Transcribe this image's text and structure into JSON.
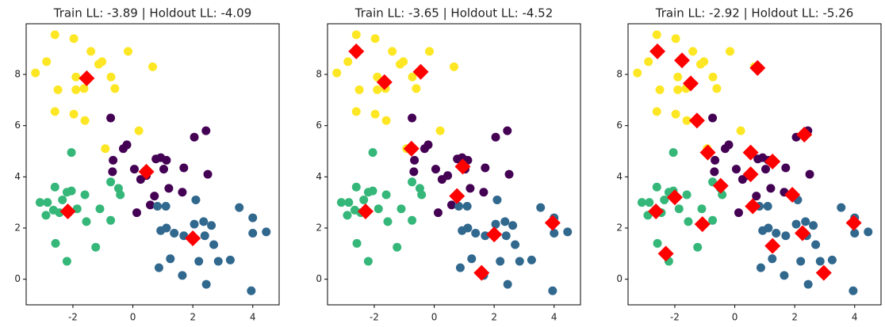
{
  "chart_data": [
    {
      "type": "scatter",
      "title": "Train LL: -3.89 | Holdout LL: -4.09",
      "xlim": [
        -3.56,
        4.88
      ],
      "ylim": [
        -1.0,
        9.98
      ],
      "xticks": [
        -2,
        0,
        2,
        4
      ],
      "yticks": [
        0,
        2,
        4,
        6,
        8
      ],
      "series": [
        {
          "color": "#fde725",
          "marker": "circle",
          "x": [
            -3.25,
            -2.88,
            -2.6,
            -1.97,
            -2.5,
            -1.9,
            -1.9,
            -2.6,
            -1.97,
            -1.6,
            -1.4,
            -1.14,
            -1.03,
            -0.73,
            -0.6,
            -0.16,
            0.66,
            0.2,
            -0.92,
            -1.63
          ],
          "values": [
            8.06,
            8.5,
            9.55,
            9.4,
            7.4,
            7.9,
            7.4,
            6.55,
            6.45,
            6.2,
            8.9,
            8.4,
            8.5,
            7.9,
            7.45,
            8.9,
            8.3,
            5.8,
            5.1,
            7.45
          ]
        },
        {
          "color": "#440154",
          "marker": "circle",
          "x": [
            -0.74,
            -0.32,
            -0.2,
            -0.66,
            -0.68,
            0.05,
            0.26,
            0.45,
            0.77,
            0.93,
            1.12,
            1.03,
            1.7,
            2.05,
            2.44,
            2.5,
            1.2,
            1.65,
            0.72,
            0.13,
            0.58
          ],
          "values": [
            6.3,
            5.1,
            5.25,
            4.65,
            4.2,
            4.3,
            3.9,
            4.05,
            4.7,
            4.75,
            4.65,
            4.3,
            4.35,
            5.55,
            5.8,
            4.1,
            3.55,
            3.4,
            3.25,
            2.6,
            2.9
          ]
        },
        {
          "color": "#31688e",
          "marker": "circle",
          "x": [
            0.82,
            1.1,
            0.93,
            1.12,
            1.38,
            1.7,
            2.05,
            2.36,
            2.62,
            2.4,
            2.7,
            2.2,
            2.85,
            3.25,
            3.55,
            4.0,
            4.0,
            4.45,
            3.95,
            2.45,
            1.65,
            1.25,
            0.87,
            2.1
          ],
          "values": [
            2.85,
            2.85,
            1.9,
            2.0,
            1.8,
            1.7,
            2.15,
            2.25,
            2.1,
            1.7,
            1.35,
            0.7,
            0.7,
            0.75,
            2.8,
            2.4,
            1.8,
            1.85,
            -0.45,
            -0.2,
            0.15,
            0.8,
            0.45,
            3.1
          ]
        },
        {
          "color": "#35b779",
          "marker": "circle",
          "x": [
            -3.1,
            -2.85,
            -2.9,
            -2.65,
            -2.6,
            -2.35,
            -2.2,
            -2.05,
            -2.05,
            -1.6,
            -1.55,
            -1.1,
            -0.74,
            -0.48,
            -0.42,
            -0.74,
            -1.24,
            -2.58,
            -2.2,
            -2.45,
            -1.86
          ],
          "values": [
            3.0,
            3.0,
            2.5,
            2.7,
            3.6,
            3.1,
            3.4,
            3.45,
            4.95,
            3.3,
            2.25,
            2.75,
            3.8,
            3.55,
            3.3,
            2.3,
            1.25,
            1.4,
            0.7,
            2.6,
            2.75
          ]
        },
        {
          "color": "#ff0000",
          "marker": "diamond",
          "x": [
            -2.17,
            -1.54,
            0.45,
            2.0
          ],
          "values": [
            2.65,
            7.85,
            4.2,
            1.6
          ]
        }
      ]
    },
    {
      "type": "scatter",
      "title": "Train LL: -3.65 | Holdout LL: -4.52",
      "xlim": [
        -3.56,
        4.88
      ],
      "ylim": [
        -1.0,
        9.98
      ],
      "xticks": [
        -2,
        0,
        2,
        4
      ],
      "yticks": [
        0,
        2,
        4,
        6,
        8
      ],
      "series": [
        {
          "color": "#fde725",
          "marker": "circle",
          "x": [
            -3.25,
            -2.88,
            -2.6,
            -1.97,
            -2.5,
            -1.9,
            -1.9,
            -2.6,
            -1.97,
            -1.6,
            -1.4,
            -1.14,
            -1.03,
            -0.73,
            -0.6,
            -0.16,
            0.66,
            0.2,
            -0.92,
            -1.63
          ],
          "values": [
            8.06,
            8.5,
            9.55,
            9.4,
            7.4,
            7.9,
            7.4,
            6.55,
            6.45,
            6.2,
            8.9,
            8.4,
            8.5,
            7.9,
            7.45,
            8.9,
            8.3,
            5.8,
            5.1,
            7.45
          ]
        },
        {
          "color": "#440154",
          "marker": "circle",
          "x": [
            -0.74,
            -0.32,
            -0.2,
            -0.66,
            -0.68,
            0.05,
            0.26,
            0.45,
            0.77,
            0.93,
            1.12,
            1.03,
            1.7,
            2.05,
            2.44,
            2.5,
            1.2,
            1.65,
            0.72,
            0.13,
            0.58
          ],
          "values": [
            6.3,
            5.1,
            5.25,
            4.65,
            4.2,
            4.3,
            3.9,
            4.05,
            4.7,
            4.75,
            4.65,
            4.3,
            4.35,
            5.55,
            5.8,
            4.1,
            3.55,
            3.4,
            3.25,
            2.6,
            2.9
          ]
        },
        {
          "color": "#31688e",
          "marker": "circle",
          "x": [
            0.82,
            1.1,
            0.93,
            1.12,
            1.38,
            1.7,
            2.05,
            2.36,
            2.62,
            2.4,
            2.7,
            2.2,
            2.85,
            3.25,
            3.55,
            4.0,
            4.0,
            4.45,
            3.95,
            2.45,
            1.65,
            1.25,
            0.87,
            2.1
          ],
          "values": [
            2.85,
            2.85,
            1.9,
            2.0,
            1.8,
            1.7,
            2.15,
            2.25,
            2.1,
            1.7,
            1.35,
            0.7,
            0.7,
            0.75,
            2.8,
            2.4,
            1.8,
            1.85,
            -0.45,
            -0.2,
            0.15,
            0.8,
            0.45,
            3.1
          ]
        },
        {
          "color": "#35b779",
          "marker": "circle",
          "x": [
            -3.1,
            -2.85,
            -2.9,
            -2.65,
            -2.6,
            -2.35,
            -2.2,
            -2.05,
            -2.05,
            -1.6,
            -1.55,
            -1.1,
            -0.74,
            -0.48,
            -0.42,
            -0.74,
            -1.24,
            -2.58,
            -2.2,
            -2.45,
            -1.86
          ],
          "values": [
            3.0,
            3.0,
            2.5,
            2.7,
            3.6,
            3.1,
            3.4,
            3.45,
            4.95,
            3.3,
            2.25,
            2.75,
            3.8,
            3.55,
            3.3,
            2.3,
            1.25,
            1.4,
            0.7,
            2.6,
            2.75
          ]
        },
        {
          "color": "#ff0000",
          "marker": "diamond",
          "x": [
            -2.6,
            -1.66,
            -0.45,
            -0.76,
            0.95,
            0.76,
            2.0,
            1.58,
            3.95,
            -2.29
          ],
          "values": [
            8.9,
            7.7,
            8.1,
            5.1,
            4.4,
            3.25,
            1.75,
            0.25,
            2.2,
            2.65
          ]
        }
      ]
    },
    {
      "type": "scatter",
      "title": "Train LL: -2.92 | Holdout LL: -5.26",
      "xlim": [
        -3.56,
        4.88
      ],
      "ylim": [
        -1.0,
        9.98
      ],
      "xticks": [
        -2,
        0,
        2,
        4
      ],
      "yticks": [
        0,
        2,
        4,
        6,
        8
      ],
      "series": [
        {
          "color": "#fde725",
          "marker": "circle",
          "x": [
            -3.25,
            -2.88,
            -2.6,
            -1.97,
            -2.5,
            -1.9,
            -1.9,
            -2.6,
            -1.97,
            -1.6,
            -1.4,
            -1.14,
            -1.03,
            -0.73,
            -0.6,
            -0.16,
            0.66,
            0.2,
            -0.92,
            -1.63
          ],
          "values": [
            8.06,
            8.5,
            9.55,
            9.4,
            7.4,
            7.9,
            7.4,
            6.55,
            6.45,
            6.2,
            8.9,
            8.4,
            8.5,
            7.9,
            7.45,
            8.9,
            8.3,
            5.8,
            5.1,
            7.45
          ]
        },
        {
          "color": "#440154",
          "marker": "circle",
          "x": [
            -0.74,
            -0.32,
            -0.2,
            -0.66,
            -0.68,
            0.05,
            0.26,
            0.45,
            0.77,
            0.93,
            1.12,
            1.03,
            1.7,
            2.05,
            2.44,
            2.5,
            1.2,
            1.65,
            0.72,
            0.13,
            0.58
          ],
          "values": [
            6.3,
            5.1,
            5.25,
            4.65,
            4.2,
            4.3,
            3.9,
            4.05,
            4.7,
            4.75,
            4.65,
            4.3,
            4.35,
            5.55,
            5.8,
            4.1,
            3.55,
            3.4,
            3.25,
            2.6,
            2.9
          ]
        },
        {
          "color": "#31688e",
          "marker": "circle",
          "x": [
            0.82,
            1.1,
            0.93,
            1.12,
            1.38,
            1.7,
            2.05,
            2.36,
            2.62,
            2.4,
            2.7,
            2.2,
            2.85,
            3.25,
            3.55,
            4.0,
            4.0,
            4.45,
            3.95,
            2.45,
            1.65,
            1.25,
            0.87,
            2.1
          ],
          "values": [
            2.85,
            2.85,
            1.9,
            2.0,
            1.8,
            1.7,
            2.15,
            2.25,
            2.1,
            1.7,
            1.35,
            0.7,
            0.7,
            0.75,
            2.8,
            2.4,
            1.8,
            1.85,
            -0.45,
            -0.2,
            0.15,
            0.8,
            0.45,
            3.1
          ]
        },
        {
          "color": "#35b779",
          "marker": "circle",
          "x": [
            -3.1,
            -2.85,
            -2.9,
            -2.65,
            -2.6,
            -2.35,
            -2.2,
            -2.05,
            -2.05,
            -1.6,
            -1.55,
            -1.1,
            -0.74,
            -0.48,
            -0.42,
            -0.74,
            -1.24,
            -2.58,
            -2.2,
            -2.45,
            -1.86
          ],
          "values": [
            3.0,
            3.0,
            2.5,
            2.7,
            3.6,
            3.1,
            3.4,
            3.45,
            4.95,
            3.3,
            2.25,
            2.75,
            3.8,
            3.55,
            3.3,
            2.3,
            1.25,
            1.4,
            0.7,
            2.6,
            2.75
          ]
        },
        {
          "color": "#ff0000",
          "marker": "diamond",
          "x": [
            -2.58,
            -1.76,
            -1.47,
            -1.26,
            -0.9,
            -0.47,
            0.53,
            0.76,
            0.6,
            1.26,
            0.53,
            1.92,
            2.32,
            2.26,
            1.26,
            2.97,
            3.97,
            -1.08,
            -2.0,
            -2.63,
            -2.3
          ],
          "values": [
            8.9,
            8.55,
            7.65,
            6.2,
            4.95,
            3.65,
            4.95,
            8.25,
            2.85,
            4.6,
            4.1,
            3.3,
            5.65,
            1.8,
            1.3,
            0.25,
            2.2,
            2.15,
            3.2,
            2.65,
            1.0
          ]
        }
      ]
    }
  ]
}
